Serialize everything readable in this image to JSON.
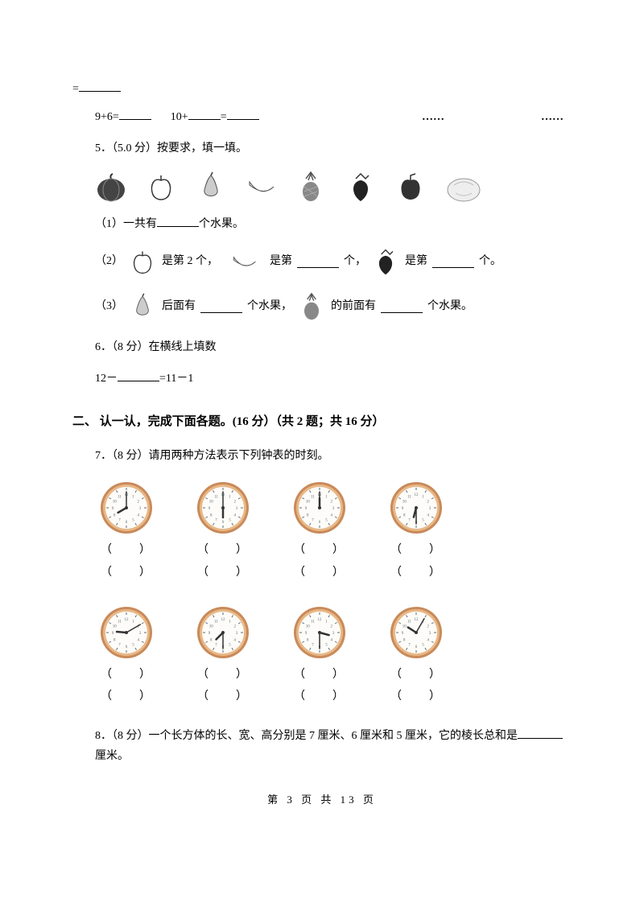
{
  "top": {
    "eq_prefix": "=",
    "expr1": "9+6=",
    "expr2a": "10+",
    "expr2b": "=",
    "dots": "……"
  },
  "q5": {
    "label": "5．（5.0 分）按要求，填一填。",
    "p1_a": "（1）一共有",
    "p1_b": "个水果。",
    "p2_a": "（2）",
    "p2_b": "是第 2 个，",
    "p2_c": "是第",
    "p2_d": "个，",
    "p2_e": "是第",
    "p2_f": "个。",
    "p3_a": "（3）",
    "p3_b": "后面有",
    "p3_c": "个水果，",
    "p3_d": "的前面有",
    "p3_e": "个水果。"
  },
  "q6": {
    "label": "6．（8 分）在横线上填数",
    "expr_a": "12－",
    "expr_b": "=11－1"
  },
  "section2": "二、 认一认，完成下面各题。(16 分）（共 2 题；共 16 分）",
  "q7": {
    "label": "7．（8 分）请用两种方法表示下列钟表的时刻。",
    "paren": "（　　）",
    "clocks_row1": [
      {
        "h": 8,
        "m": 0
      },
      {
        "h": 6,
        "m": 0
      },
      {
        "h": 12,
        "m": 0
      },
      {
        "h": 6,
        "m": 30
      }
    ],
    "clocks_row2": [
      {
        "h": 9,
        "m": 10
      },
      {
        "h": 7,
        "m": 30
      },
      {
        "h": 3,
        "m": 30
      },
      {
        "h": 10,
        "m": 5
      }
    ],
    "clock_colors": {
      "ring": "#c98a5a",
      "ring_inner": "#e8b887",
      "face": "#fdfcf8",
      "marks": "#5a6a78",
      "hands": "#333",
      "center": "#333"
    }
  },
  "q8": {
    "a": "8．（8 分）一个长方体的长、宽、高分别是 7 厘米、6 厘米和 5 厘米，它的棱长总和是",
    "b": "厘米。"
  },
  "footer": {
    "a": "第 3 页 共 13 页"
  }
}
